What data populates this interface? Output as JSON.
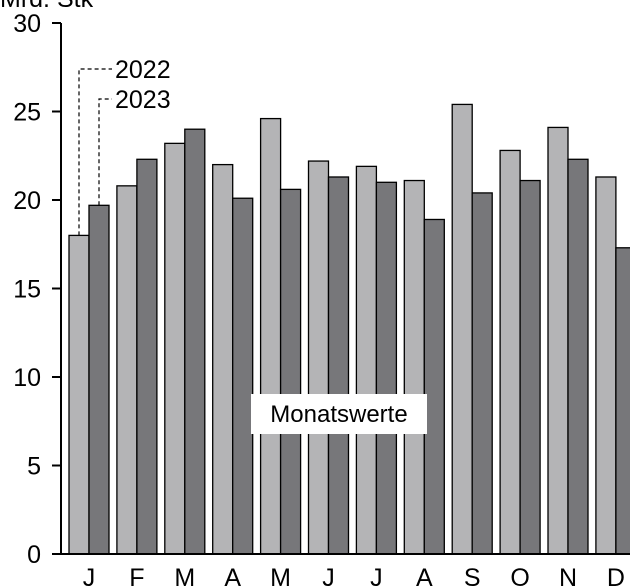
{
  "chart_data": {
    "type": "bar",
    "unit_label": "Mrd. Stk",
    "annotation": "Monatswerte",
    "categories": [
      "J",
      "F",
      "M",
      "A",
      "M",
      "J",
      "J",
      "A",
      "S",
      "O",
      "N",
      "D"
    ],
    "series": [
      {
        "name": "2022",
        "color": "#b4b4b6",
        "values": [
          18.0,
          20.8,
          23.2,
          22.0,
          24.6,
          22.2,
          21.9,
          21.1,
          25.4,
          22.8,
          24.1,
          21.3
        ]
      },
      {
        "name": "2023",
        "color": "#77777a",
        "values": [
          19.7,
          22.3,
          24.0,
          20.1,
          20.6,
          21.3,
          21.0,
          18.9,
          20.4,
          21.1,
          22.3,
          17.3
        ]
      }
    ],
    "yticks": [
      "0",
      "5",
      "10",
      "15",
      "20",
      "25",
      "30"
    ],
    "ylim": [
      0,
      30
    ],
    "grid": false
  }
}
